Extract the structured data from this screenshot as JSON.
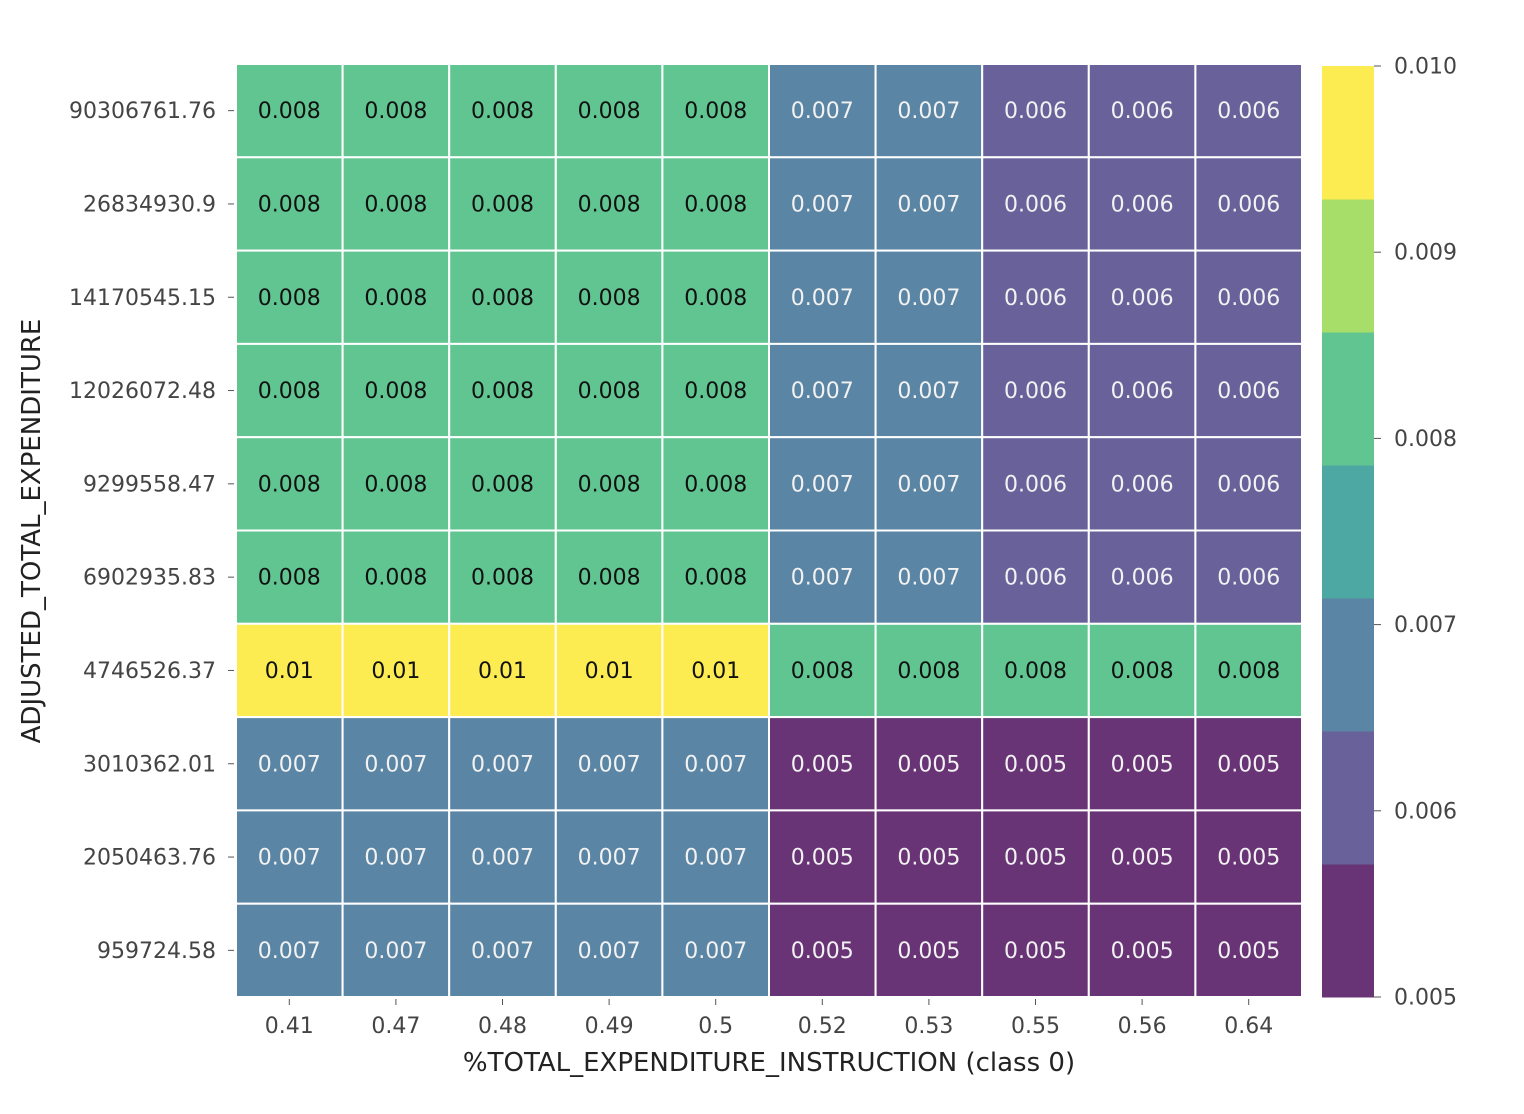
{
  "chart_data": {
    "type": "heatmap",
    "title": "",
    "xlabel": "%TOTAL_EXPENDITURE_INSTRUCTION (class 0)",
    "ylabel": "ADJUSTED_TOTAL_EXPENDITURE",
    "x_categories": [
      "0.41",
      "0.47",
      "0.48",
      "0.49",
      "0.5",
      "0.52",
      "0.53",
      "0.55",
      "0.56",
      "0.64"
    ],
    "y_categories": [
      "90306761.76",
      "26834930.9",
      "14170545.15",
      "12026072.48",
      "9299558.47",
      "6902935.83",
      "4746526.37",
      "3010362.01",
      "2050463.76",
      "959724.58"
    ],
    "values": [
      [
        0.008,
        0.008,
        0.008,
        0.008,
        0.008,
        0.007,
        0.007,
        0.006,
        0.006,
        0.006
      ],
      [
        0.008,
        0.008,
        0.008,
        0.008,
        0.008,
        0.007,
        0.007,
        0.006,
        0.006,
        0.006
      ],
      [
        0.008,
        0.008,
        0.008,
        0.008,
        0.008,
        0.007,
        0.007,
        0.006,
        0.006,
        0.006
      ],
      [
        0.008,
        0.008,
        0.008,
        0.008,
        0.008,
        0.007,
        0.007,
        0.006,
        0.006,
        0.006
      ],
      [
        0.008,
        0.008,
        0.008,
        0.008,
        0.008,
        0.007,
        0.007,
        0.006,
        0.006,
        0.006
      ],
      [
        0.008,
        0.008,
        0.008,
        0.008,
        0.008,
        0.007,
        0.007,
        0.006,
        0.006,
        0.006
      ],
      [
        0.01,
        0.01,
        0.01,
        0.01,
        0.01,
        0.008,
        0.008,
        0.008,
        0.008,
        0.008
      ],
      [
        0.007,
        0.007,
        0.007,
        0.007,
        0.007,
        0.005,
        0.005,
        0.005,
        0.005,
        0.005
      ],
      [
        0.007,
        0.007,
        0.007,
        0.007,
        0.007,
        0.005,
        0.005,
        0.005,
        0.005,
        0.005
      ],
      [
        0.007,
        0.007,
        0.007,
        0.007,
        0.007,
        0.005,
        0.005,
        0.005,
        0.005,
        0.005
      ]
    ],
    "value_range": [
      0.005,
      0.01
    ],
    "colormap": "viridis",
    "colorbar": {
      "ticks": [
        "0.005",
        "0.006",
        "0.007",
        "0.008",
        "0.009",
        "0.010"
      ],
      "levels": 7
    },
    "annotations": true,
    "grid_lines_color": "#ffffff"
  }
}
